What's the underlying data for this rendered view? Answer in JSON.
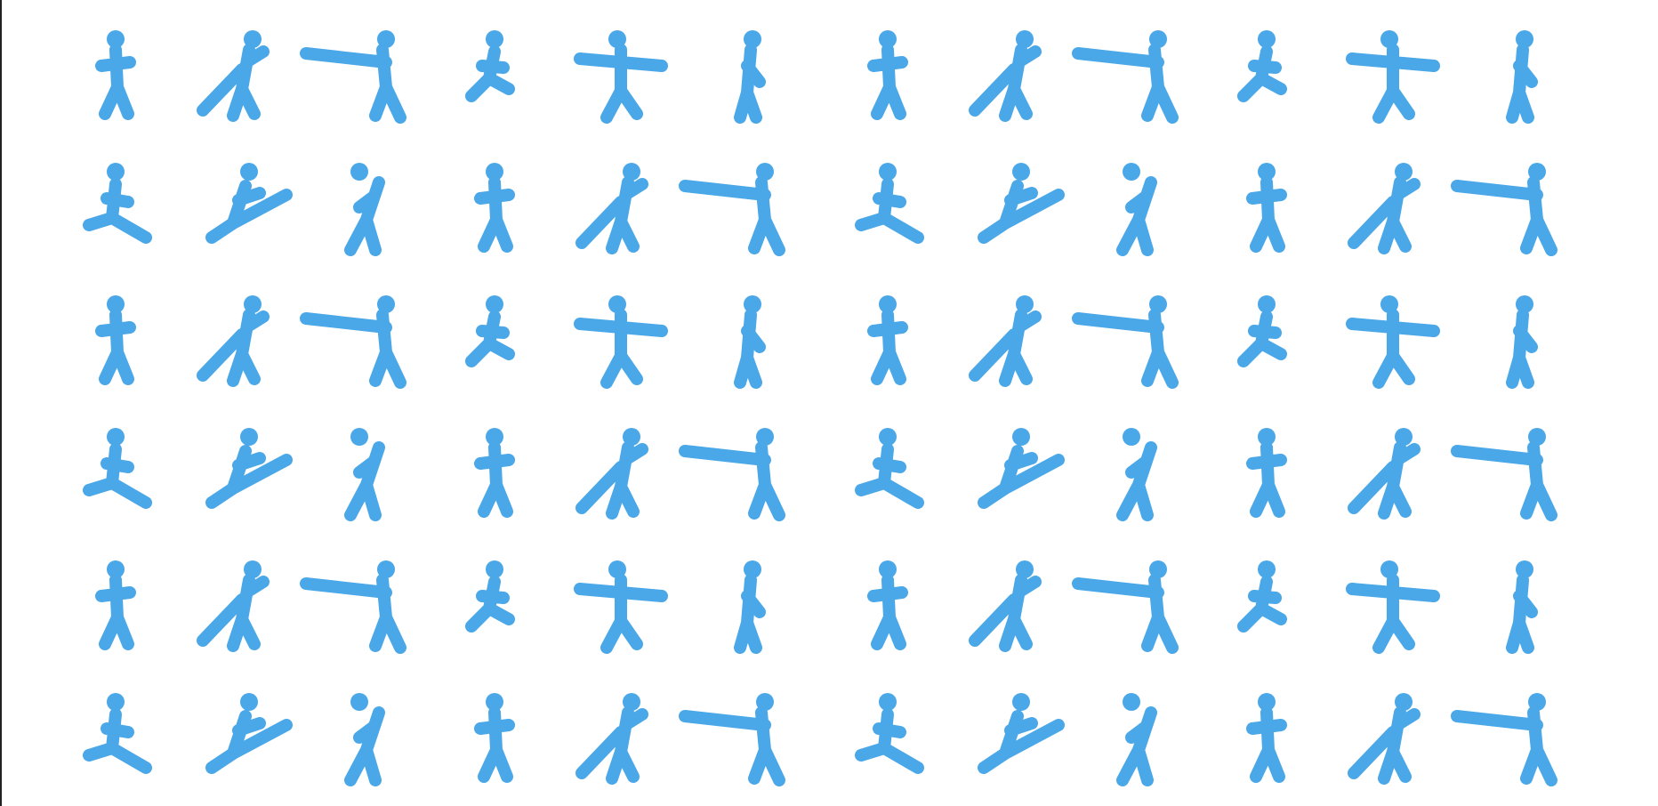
{
  "pattern": {
    "figure_color": "#4aa7e8",
    "background_color": "#ffffff",
    "frame_color": "#222222",
    "repeat_columns": 2,
    "rows": [
      {
        "poses": [
          "small-figure-fists-raised",
          "figure-with-staff",
          "figure-high-kick-back",
          "crouching-figure-small",
          "figure-arms-out-wide",
          "standing-figure-robe"
        ]
      },
      {
        "poses": [
          "figure-leaning-strike",
          "figure-side-kick",
          "figure-lunge-punch",
          "crouching-figure-kick-low",
          "figure-flying-kick",
          "figure-leaning-back"
        ]
      },
      {
        "poses": [
          "standing-figure-hands-folded",
          "figure-wide-stance",
          "seated-figure",
          "figure-arms-swirl",
          "figure-horse-stance",
          "small-figure-stepping"
        ]
      },
      {
        "poses": [
          "figure-crouch-punch",
          "figure-arms-overhead-circle",
          "figure-guard-stance",
          "figure-kneeling-block",
          "figure-jump-kick",
          "figure-bending-over"
        ]
      },
      {
        "poses": [
          "figure-fighting-stance",
          "figure-forward-punch",
          "figure-long-stride",
          "figure-with-spear-upright",
          "figure-coiled-spin",
          "figure-aerial-kick"
        ]
      },
      {
        "poses": [
          "small-figure-fists-raised",
          "figure-sweeping-staff",
          "figure-spinning-kick",
          "crouching-figure-small",
          "figure-arms-out-wide",
          "standing-figure-robe"
        ]
      }
    ]
  }
}
